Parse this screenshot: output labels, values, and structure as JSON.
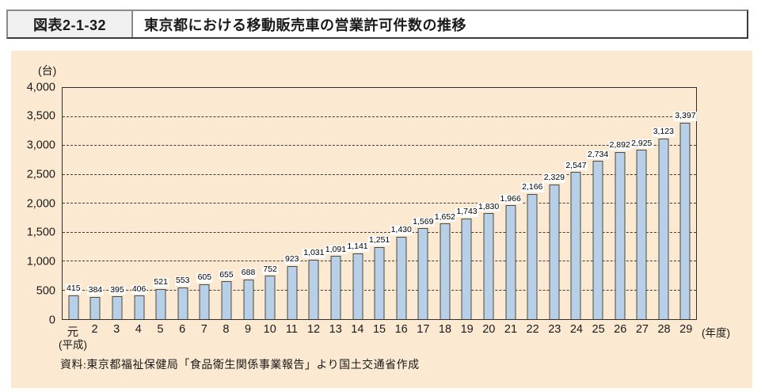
{
  "header": {
    "figure_label": "図表2-1-32",
    "title": "東京都における移動販売車の営業許可件数の推移"
  },
  "panel": {
    "unit_label": "(台)",
    "era_label": "(平成)",
    "axis_suffix_label": "(年度)",
    "source_text": "資料:東京都福祉保健局「食品衛生関係事業報告」より国土交通省作成"
  },
  "chart_data": {
    "type": "bar",
    "title": "東京都における移動販売車の営業許可件数の推移",
    "unit": "台",
    "xlabel": "年度(平成)",
    "ylabel": "台",
    "categories": [
      "元",
      "2",
      "3",
      "4",
      "5",
      "6",
      "7",
      "8",
      "9",
      "10",
      "11",
      "12",
      "13",
      "14",
      "15",
      "16",
      "17",
      "18",
      "19",
      "20",
      "21",
      "22",
      "23",
      "24",
      "25",
      "26",
      "27",
      "28",
      "29"
    ],
    "values": [
      415,
      384,
      395,
      406,
      521,
      553,
      605,
      655,
      688,
      752,
      923,
      1031,
      1091,
      1141,
      1251,
      1430,
      1569,
      1652,
      1743,
      1830,
      1966,
      2166,
      2329,
      2547,
      2734,
      2892,
      2925,
      3123,
      3397
    ],
    "value_labels": [
      "415",
      "384",
      "395",
      "406",
      "521",
      "553",
      "605",
      "655",
      "688",
      "752",
      "923",
      "1,031",
      "1,091",
      "1,141",
      "1,251",
      "1,430",
      "1,569",
      "1,652",
      "1,743",
      "1,830",
      "1,966",
      "2,166",
      "2,329",
      "2,547",
      "2,734",
      "2,892",
      "2,925",
      "3,123",
      "3,397"
    ],
    "ylim": [
      0,
      4000
    ],
    "ytick_interval": 500,
    "ytick_labels": [
      "0",
      "500",
      "1,000",
      "1,500",
      "2,000",
      "2,500",
      "3,000",
      "3,500",
      "4,000"
    ],
    "grid": "horizontal-dashed",
    "legend": "none",
    "bar_color": "#b8cfe8",
    "bar_border_color": "#4a4a42",
    "background_color": "#fce9d2"
  }
}
